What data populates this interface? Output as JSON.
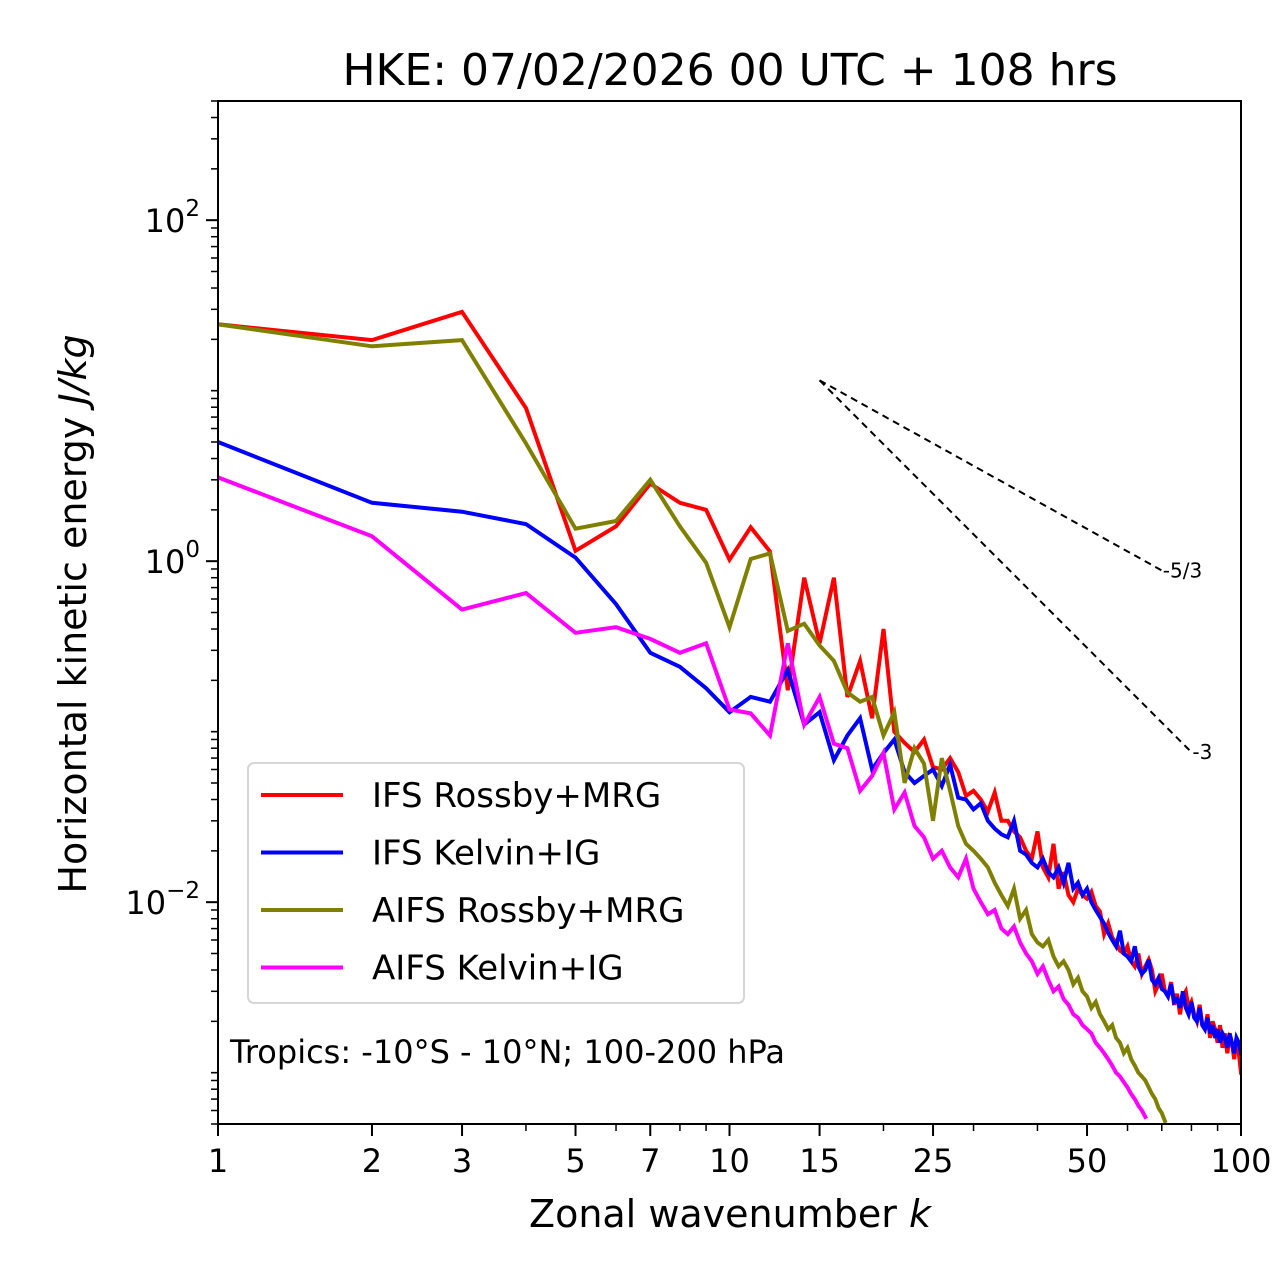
{
  "chart_data": {
    "type": "line",
    "title": "HKE: 07/02/2026 00 UTC + 108 hrs",
    "xlabel": "Zonal wavenumber k",
    "xlabel_main": "Zonal wavenumber ",
    "xlabel_italic": "k",
    "ylabel": "Horizontal kinetic energy J/kg",
    "ylabel_main": "Horizontal kinetic energy ",
    "ylabel_italic": "J/kg",
    "xscale": "log",
    "yscale": "log",
    "xlim": [
      1,
      100
    ],
    "ylim": [
      0.0005,
      500
    ],
    "xticks": [
      1,
      2,
      3,
      5,
      7,
      10,
      15,
      25,
      50,
      100
    ],
    "xtick_labels": [
      "1",
      "2",
      "3",
      "5",
      "7",
      "10",
      "15",
      "25",
      "50",
      "100"
    ],
    "yticks": [
      0.01,
      1,
      100
    ],
    "ytick_labels": [
      {
        "base": "10",
        "exp": "−2"
      },
      {
        "base": "10",
        "exp": "0"
      },
      {
        "base": "10",
        "exp": "2"
      }
    ],
    "grid": false,
    "legend_position": "lower-left",
    "annotation": "Tropics: -10°S - 10°N; 100-200 hPa",
    "reference_slopes": [
      {
        "label": "-5/3",
        "slope": -1.6667,
        "k_start": 15,
        "k_end": 70,
        "E_start": 11.5
      },
      {
        "label": "-3",
        "slope": -3,
        "k_start": 15,
        "k_end": 80,
        "E_start": 11.5
      }
    ],
    "series": [
      {
        "name": "IFS Rossby+MRG",
        "color": "#ff0000",
        "k_start": 1,
        "values": [
          24.5,
          19.8,
          29.0,
          7.9,
          1.15,
          1.6,
          2.85,
          2.2,
          2.0,
          1.02,
          1.58,
          1.14,
          0.175,
          0.8,
          0.33,
          0.8,
          0.16,
          0.26,
          0.12,
          0.4,
          0.1,
          0.086,
          0.076,
          0.09,
          0.062,
          0.06,
          0.07,
          0.058,
          0.042,
          0.045,
          0.04,
          0.034,
          0.044,
          0.03,
          0.03,
          0.026,
          0.024,
          0.02,
          0.018,
          0.026,
          0.016,
          0.014,
          0.022,
          0.012,
          0.015,
          0.011,
          0.01,
          0.012,
          0.011,
          0.0105,
          0.0115,
          0.0095,
          0.0088,
          0.0065,
          0.0075,
          0.0062,
          0.0058,
          0.0052,
          0.005,
          0.0055,
          0.0045,
          0.0042,
          0.005,
          0.0038,
          0.0042,
          0.0046,
          0.004,
          0.003,
          0.0033,
          0.0038,
          0.003,
          0.0028,
          0.0034,
          0.0025,
          0.0029,
          0.0022,
          0.0028,
          0.003,
          0.0024,
          0.0026,
          0.0022,
          0.002,
          0.0025,
          0.0019,
          0.0018,
          0.0022,
          0.0016,
          0.002,
          0.0018,
          0.0015,
          0.0019,
          0.0014,
          0.0017,
          0.0013,
          0.0016,
          0.0015,
          0.0012,
          0.0016,
          0.0013,
          0.001
        ]
      },
      {
        "name": "IFS Kelvin+IG",
        "color": "#0000ff",
        "k_start": 1,
        "values": [
          5.0,
          2.2,
          1.95,
          1.65,
          1.05,
          0.56,
          0.29,
          0.24,
          0.18,
          0.13,
          0.16,
          0.15,
          0.23,
          0.11,
          0.13,
          0.068,
          0.095,
          0.12,
          0.06,
          0.075,
          0.09,
          0.058,
          0.05,
          0.055,
          0.06,
          0.048,
          0.064,
          0.041,
          0.04,
          0.035,
          0.038,
          0.03,
          0.027,
          0.025,
          0.024,
          0.03,
          0.02,
          0.019,
          0.017,
          0.016,
          0.018,
          0.015,
          0.014,
          0.016,
          0.013,
          0.017,
          0.012,
          0.013,
          0.011,
          0.012,
          0.01,
          0.009,
          0.0082,
          0.0075,
          0.0066,
          0.006,
          0.0055,
          0.0068,
          0.005,
          0.0048,
          0.0045,
          0.0055,
          0.0042,
          0.0038,
          0.004,
          0.0046,
          0.0035,
          0.0033,
          0.0036,
          0.0031,
          0.003,
          0.0028,
          0.0033,
          0.0026,
          0.0027,
          0.0024,
          0.003,
          0.0024,
          0.0022,
          0.0026,
          0.0021,
          0.002,
          0.0024,
          0.0019,
          0.0018,
          0.0021,
          0.0017,
          0.0019,
          0.0016,
          0.0018,
          0.0015,
          0.0017,
          0.0016,
          0.0014,
          0.0017,
          0.0015,
          0.0013,
          0.0016,
          0.0015,
          0.0013
        ]
      },
      {
        "name": "AIFS Rossby+MRG",
        "color": "#808000",
        "k_start": 1,
        "values": [
          24.5,
          18.2,
          19.8,
          4.9,
          1.55,
          1.72,
          3.0,
          1.6,
          0.98,
          0.41,
          1.03,
          1.11,
          0.39,
          0.43,
          0.32,
          0.26,
          0.17,
          0.15,
          0.16,
          0.095,
          0.13,
          0.05,
          0.08,
          0.065,
          0.03,
          0.07,
          0.045,
          0.028,
          0.022,
          0.02,
          0.018,
          0.016,
          0.013,
          0.011,
          0.0095,
          0.012,
          0.008,
          0.009,
          0.0065,
          0.0058,
          0.0055,
          0.006,
          0.0048,
          0.0042,
          0.0045,
          0.004,
          0.0033,
          0.0036,
          0.003,
          0.0028,
          0.0024,
          0.0026,
          0.0022,
          0.002,
          0.0018,
          0.0019,
          0.0016,
          0.0015,
          0.0013,
          0.0014,
          0.0012,
          0.0011,
          0.001,
          0.00095,
          0.0009,
          0.00082,
          0.00075,
          0.0007,
          0.00062,
          0.00058,
          0.00052
        ]
      },
      {
        "name": "AIFS Kelvin+IG",
        "color": "#ff00ff",
        "k_start": 1,
        "values": [
          3.1,
          1.4,
          0.52,
          0.65,
          0.38,
          0.41,
          0.35,
          0.29,
          0.33,
          0.135,
          0.128,
          0.095,
          0.33,
          0.11,
          0.16,
          0.085,
          0.08,
          0.045,
          0.055,
          0.075,
          0.035,
          0.044,
          0.028,
          0.024,
          0.018,
          0.02,
          0.016,
          0.014,
          0.018,
          0.012,
          0.01,
          0.0085,
          0.009,
          0.007,
          0.0065,
          0.0072,
          0.0058,
          0.005,
          0.0045,
          0.0038,
          0.0042,
          0.0035,
          0.003,
          0.0032,
          0.0027,
          0.0025,
          0.0022,
          0.0021,
          0.0019,
          0.0018,
          0.0017,
          0.0015,
          0.0014,
          0.0013,
          0.0012,
          0.0011,
          0.001,
          0.00095,
          0.00088,
          0.00082,
          0.00075,
          0.0007,
          0.00064,
          0.0006,
          0.00055
        ]
      }
    ]
  }
}
